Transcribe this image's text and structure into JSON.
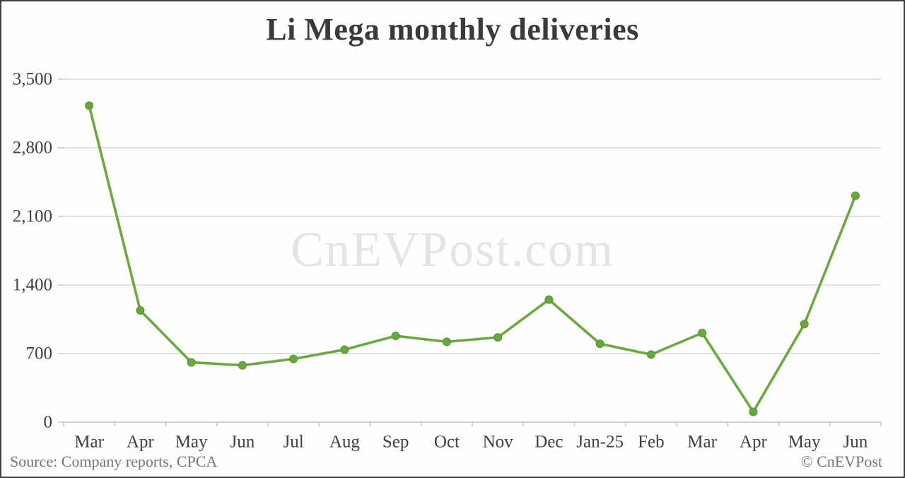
{
  "title": "Li Mega monthly deliveries",
  "watermark": "CnEVPost.com",
  "source": "Source: Company reports, CPCA",
  "copyright": "© CnEVPost",
  "colors": {
    "line": "#6aa93e",
    "marker_fill": "#68a73c",
    "marker_edge": "#569231",
    "gridline": "#d9d9d9",
    "axis": "#c2c2c2",
    "tick_label": "#404040",
    "title_text": "#3a3a3a",
    "note_text": "#6f7680",
    "watermark_text": "#e4e4e5"
  },
  "chart_data": {
    "type": "line",
    "title": "Li Mega monthly deliveries",
    "categories": [
      "Mar",
      "Apr",
      "May",
      "Jun",
      "Jul",
      "Aug",
      "Sep",
      "Oct",
      "Nov",
      "Dec",
      "Jan-25",
      "Feb",
      "Mar",
      "Apr",
      "May",
      "Jun"
    ],
    "values": [
      3230,
      1140,
      610,
      580,
      645,
      740,
      880,
      820,
      865,
      1250,
      800,
      690,
      910,
      105,
      1000,
      2310
    ],
    "series": [
      {
        "name": "Li Mega monthly deliveries",
        "values": [
          3230,
          1140,
          610,
          580,
          645,
          740,
          880,
          820,
          865,
          1250,
          800,
          690,
          910,
          105,
          1000,
          2310
        ]
      }
    ],
    "xlabel": "",
    "ylabel": "",
    "ylim": [
      0,
      3500
    ],
    "y_ticks": [
      0,
      700,
      1400,
      2100,
      2800,
      3500
    ],
    "y_tick_labels": [
      "0",
      "700",
      "1,400",
      "2,100",
      "2,800",
      "3,500"
    ],
    "grid": "horizontal",
    "legend": "none"
  }
}
